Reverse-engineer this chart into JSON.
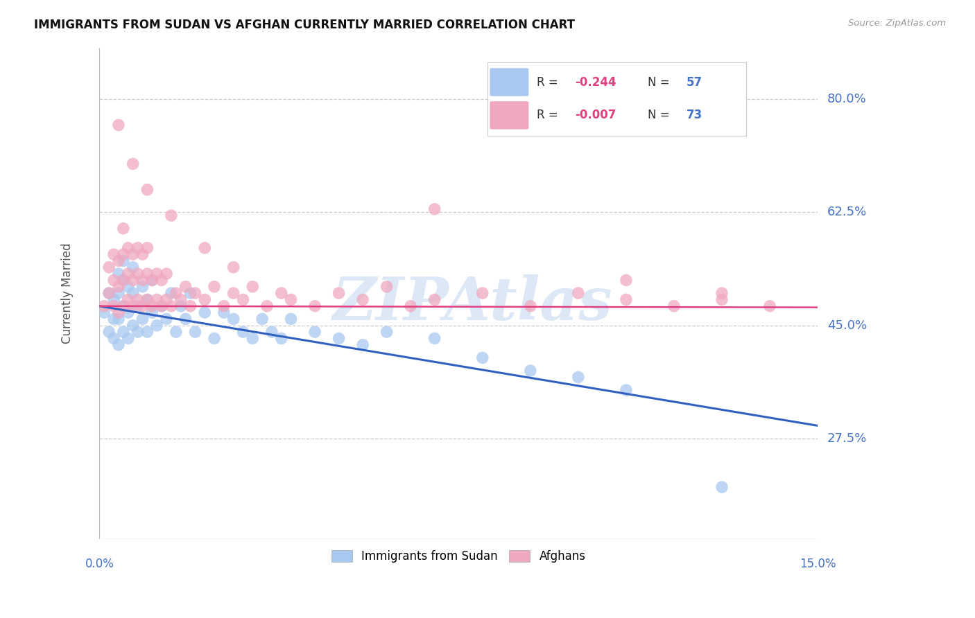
{
  "title": "IMMIGRANTS FROM SUDAN VS AFGHAN CURRENTLY MARRIED CORRELATION CHART",
  "source": "Source: ZipAtlas.com",
  "ylabel": "Currently Married",
  "y_tick_labels": [
    "80.0%",
    "62.5%",
    "45.0%",
    "27.5%"
  ],
  "y_tick_values": [
    0.8,
    0.625,
    0.45,
    0.275
  ],
  "x_range": [
    0.0,
    0.15
  ],
  "y_range": [
    0.12,
    0.88
  ],
  "color_sudan": "#a8c8f0",
  "color_afghan": "#f0a8c0",
  "color_sudan_line": "#3060c0",
  "color_afghan_line": "#e04080",
  "color_tick_labels": "#4472c4",
  "color_grid": "#cccccc",
  "sudan_x": [
    0.001,
    0.002,
    0.002,
    0.003,
    0.003,
    0.003,
    0.004,
    0.004,
    0.004,
    0.004,
    0.005,
    0.005,
    0.005,
    0.005,
    0.006,
    0.006,
    0.006,
    0.007,
    0.007,
    0.007,
    0.008,
    0.008,
    0.009,
    0.009,
    0.01,
    0.01,
    0.011,
    0.011,
    0.012,
    0.013,
    0.014,
    0.015,
    0.016,
    0.017,
    0.018,
    0.019,
    0.02,
    0.022,
    0.024,
    0.026,
    0.028,
    0.03,
    0.032,
    0.034,
    0.036,
    0.038,
    0.04,
    0.045,
    0.05,
    0.055,
    0.06,
    0.07,
    0.08,
    0.09,
    0.1,
    0.11,
    0.13
  ],
  "sudan_y": [
    0.47,
    0.44,
    0.5,
    0.43,
    0.46,
    0.49,
    0.42,
    0.46,
    0.5,
    0.53,
    0.44,
    0.48,
    0.52,
    0.55,
    0.43,
    0.47,
    0.51,
    0.45,
    0.5,
    0.54,
    0.44,
    0.48,
    0.46,
    0.51,
    0.44,
    0.49,
    0.47,
    0.52,
    0.45,
    0.48,
    0.46,
    0.5,
    0.44,
    0.48,
    0.46,
    0.5,
    0.44,
    0.47,
    0.43,
    0.47,
    0.46,
    0.44,
    0.43,
    0.46,
    0.44,
    0.43,
    0.46,
    0.44,
    0.43,
    0.42,
    0.44,
    0.43,
    0.4,
    0.38,
    0.37,
    0.35,
    0.2
  ],
  "afghan_x": [
    0.001,
    0.002,
    0.002,
    0.003,
    0.003,
    0.003,
    0.004,
    0.004,
    0.004,
    0.005,
    0.005,
    0.005,
    0.005,
    0.006,
    0.006,
    0.006,
    0.007,
    0.007,
    0.007,
    0.008,
    0.008,
    0.008,
    0.009,
    0.009,
    0.009,
    0.01,
    0.01,
    0.01,
    0.011,
    0.011,
    0.012,
    0.012,
    0.013,
    0.013,
    0.014,
    0.014,
    0.015,
    0.016,
    0.017,
    0.018,
    0.019,
    0.02,
    0.022,
    0.024,
    0.026,
    0.028,
    0.03,
    0.032,
    0.035,
    0.038,
    0.04,
    0.045,
    0.05,
    0.055,
    0.06,
    0.065,
    0.07,
    0.08,
    0.09,
    0.1,
    0.11,
    0.12,
    0.13,
    0.14,
    0.004,
    0.007,
    0.01,
    0.015,
    0.022,
    0.028,
    0.07,
    0.11,
    0.13
  ],
  "afghan_y": [
    0.48,
    0.5,
    0.54,
    0.48,
    0.52,
    0.56,
    0.47,
    0.51,
    0.55,
    0.48,
    0.52,
    0.56,
    0.6,
    0.49,
    0.53,
    0.57,
    0.48,
    0.52,
    0.56,
    0.49,
    0.53,
    0.57,
    0.48,
    0.52,
    0.56,
    0.49,
    0.53,
    0.57,
    0.48,
    0.52,
    0.49,
    0.53,
    0.48,
    0.52,
    0.49,
    0.53,
    0.48,
    0.5,
    0.49,
    0.51,
    0.48,
    0.5,
    0.49,
    0.51,
    0.48,
    0.5,
    0.49,
    0.51,
    0.48,
    0.5,
    0.49,
    0.48,
    0.5,
    0.49,
    0.51,
    0.48,
    0.49,
    0.5,
    0.48,
    0.5,
    0.49,
    0.48,
    0.5,
    0.48,
    0.76,
    0.7,
    0.66,
    0.62,
    0.57,
    0.54,
    0.63,
    0.52,
    0.49
  ],
  "legend_sudan_r": "-0.244",
  "legend_sudan_n": "57",
  "legend_afghan_r": "-0.007",
  "legend_afghan_n": "73"
}
